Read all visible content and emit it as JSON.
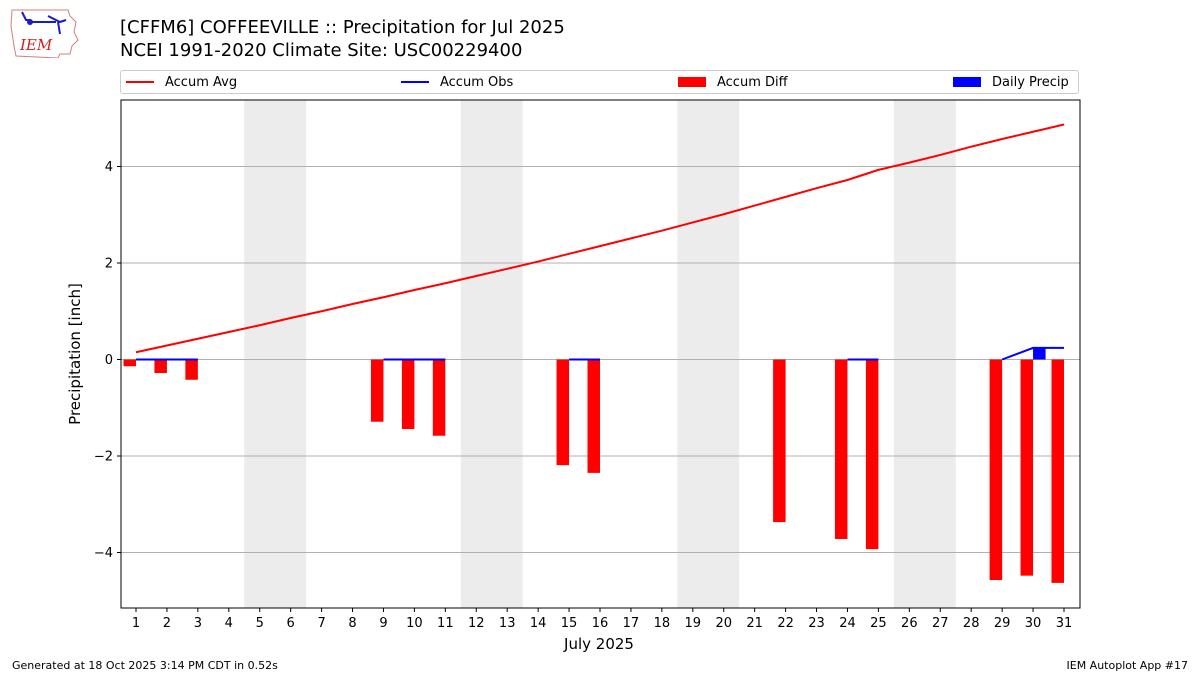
{
  "header": {
    "title_line1": "[CFFM6] COFFEEVILLE :: Precipitation for Jul 2025",
    "title_line2": "NCEI 1991-2020 Climate Site: USC00229400",
    "logo_text": "IEM"
  },
  "legend": [
    {
      "label": "Accum Avg",
      "kind": "line",
      "color": "#ff0000"
    },
    {
      "label": "Accum Obs",
      "kind": "line",
      "color": "#0000ff"
    },
    {
      "label": "Accum Diff",
      "kind": "box",
      "color": "#ff0000"
    },
    {
      "label": "Daily Precip",
      "kind": "box",
      "color": "#0000ff"
    }
  ],
  "footer": {
    "left": "Generated at 18 Oct 2025 3:14 PM CDT in 0.52s",
    "right": "IEM Autoplot App #17"
  },
  "chart_data": {
    "type": "bar",
    "title": "[CFFM6] COFFEEVILLE :: Precipitation for Jul 2025",
    "subtitle": "NCEI 1991-2020 Climate Site: USC00229400",
    "xlabel": "July 2025",
    "ylabel": "Precipitation [inch]",
    "x": [
      1,
      2,
      3,
      4,
      5,
      6,
      7,
      8,
      9,
      10,
      11,
      12,
      13,
      14,
      15,
      16,
      17,
      18,
      19,
      20,
      21,
      22,
      23,
      24,
      25,
      26,
      27,
      28,
      29,
      30,
      31
    ],
    "xticks": [
      "1",
      "2",
      "3",
      "4",
      "5",
      "6",
      "7",
      "8",
      "9",
      "10",
      "11",
      "12",
      "13",
      "14",
      "15",
      "16",
      "17",
      "18",
      "19",
      "20",
      "21",
      "22",
      "23",
      "24",
      "25",
      "26",
      "27",
      "28",
      "29",
      "30",
      "31"
    ],
    "xlim": [
      0.5,
      31.5
    ],
    "ylim": [
      -5.2,
      5.4
    ],
    "yticks": [
      -4,
      -2,
      0,
      2,
      4
    ],
    "ytick_labels": [
      "−4",
      "−2",
      "0",
      "2",
      "4"
    ],
    "grid": "horizontal",
    "legend_position": "top (above plot, expanded)",
    "shaded_weekends": [
      [
        4.5,
        6.5
      ],
      [
        11.5,
        13.5
      ],
      [
        18.5,
        20.5
      ],
      [
        25.5,
        27.5
      ]
    ],
    "series": [
      {
        "name": "Accum Avg",
        "type": "line",
        "color": "#ff0000",
        "values": [
          0.15,
          0.29,
          0.43,
          0.57,
          0.71,
          0.86,
          1.0,
          1.15,
          1.29,
          1.44,
          1.58,
          1.73,
          1.88,
          2.03,
          2.19,
          2.35,
          2.51,
          2.67,
          2.84,
          3.01,
          3.19,
          3.37,
          3.55,
          3.72,
          3.93,
          4.08,
          4.24,
          4.41,
          4.57,
          4.72,
          4.87
        ]
      },
      {
        "name": "Accum Obs",
        "type": "line",
        "color": "#0000ff",
        "values": [
          0,
          0,
          0,
          null,
          null,
          null,
          null,
          null,
          0,
          0,
          0,
          null,
          null,
          null,
          0,
          0,
          null,
          null,
          null,
          null,
          null,
          null,
          null,
          0,
          0,
          null,
          null,
          null,
          0,
          0.24,
          0.24
        ]
      },
      {
        "name": "Accum Diff",
        "type": "bar",
        "color": "#ff0000",
        "values": [
          -0.14,
          -0.28,
          -0.42,
          null,
          null,
          null,
          null,
          null,
          -1.29,
          -1.44,
          -1.58,
          null,
          null,
          null,
          -2.19,
          -2.35,
          null,
          null,
          null,
          null,
          null,
          -3.37,
          null,
          -3.72,
          -3.93,
          null,
          null,
          null,
          -4.57,
          -4.48,
          -4.63
        ]
      },
      {
        "name": "Daily Precip",
        "type": "bar",
        "color": "#0000ff",
        "values": [
          0,
          0,
          0,
          null,
          null,
          null,
          null,
          null,
          0,
          0,
          0,
          null,
          null,
          null,
          0,
          0,
          null,
          null,
          null,
          null,
          null,
          null,
          null,
          0,
          0,
          null,
          null,
          null,
          0,
          0.24,
          0
        ]
      }
    ]
  }
}
